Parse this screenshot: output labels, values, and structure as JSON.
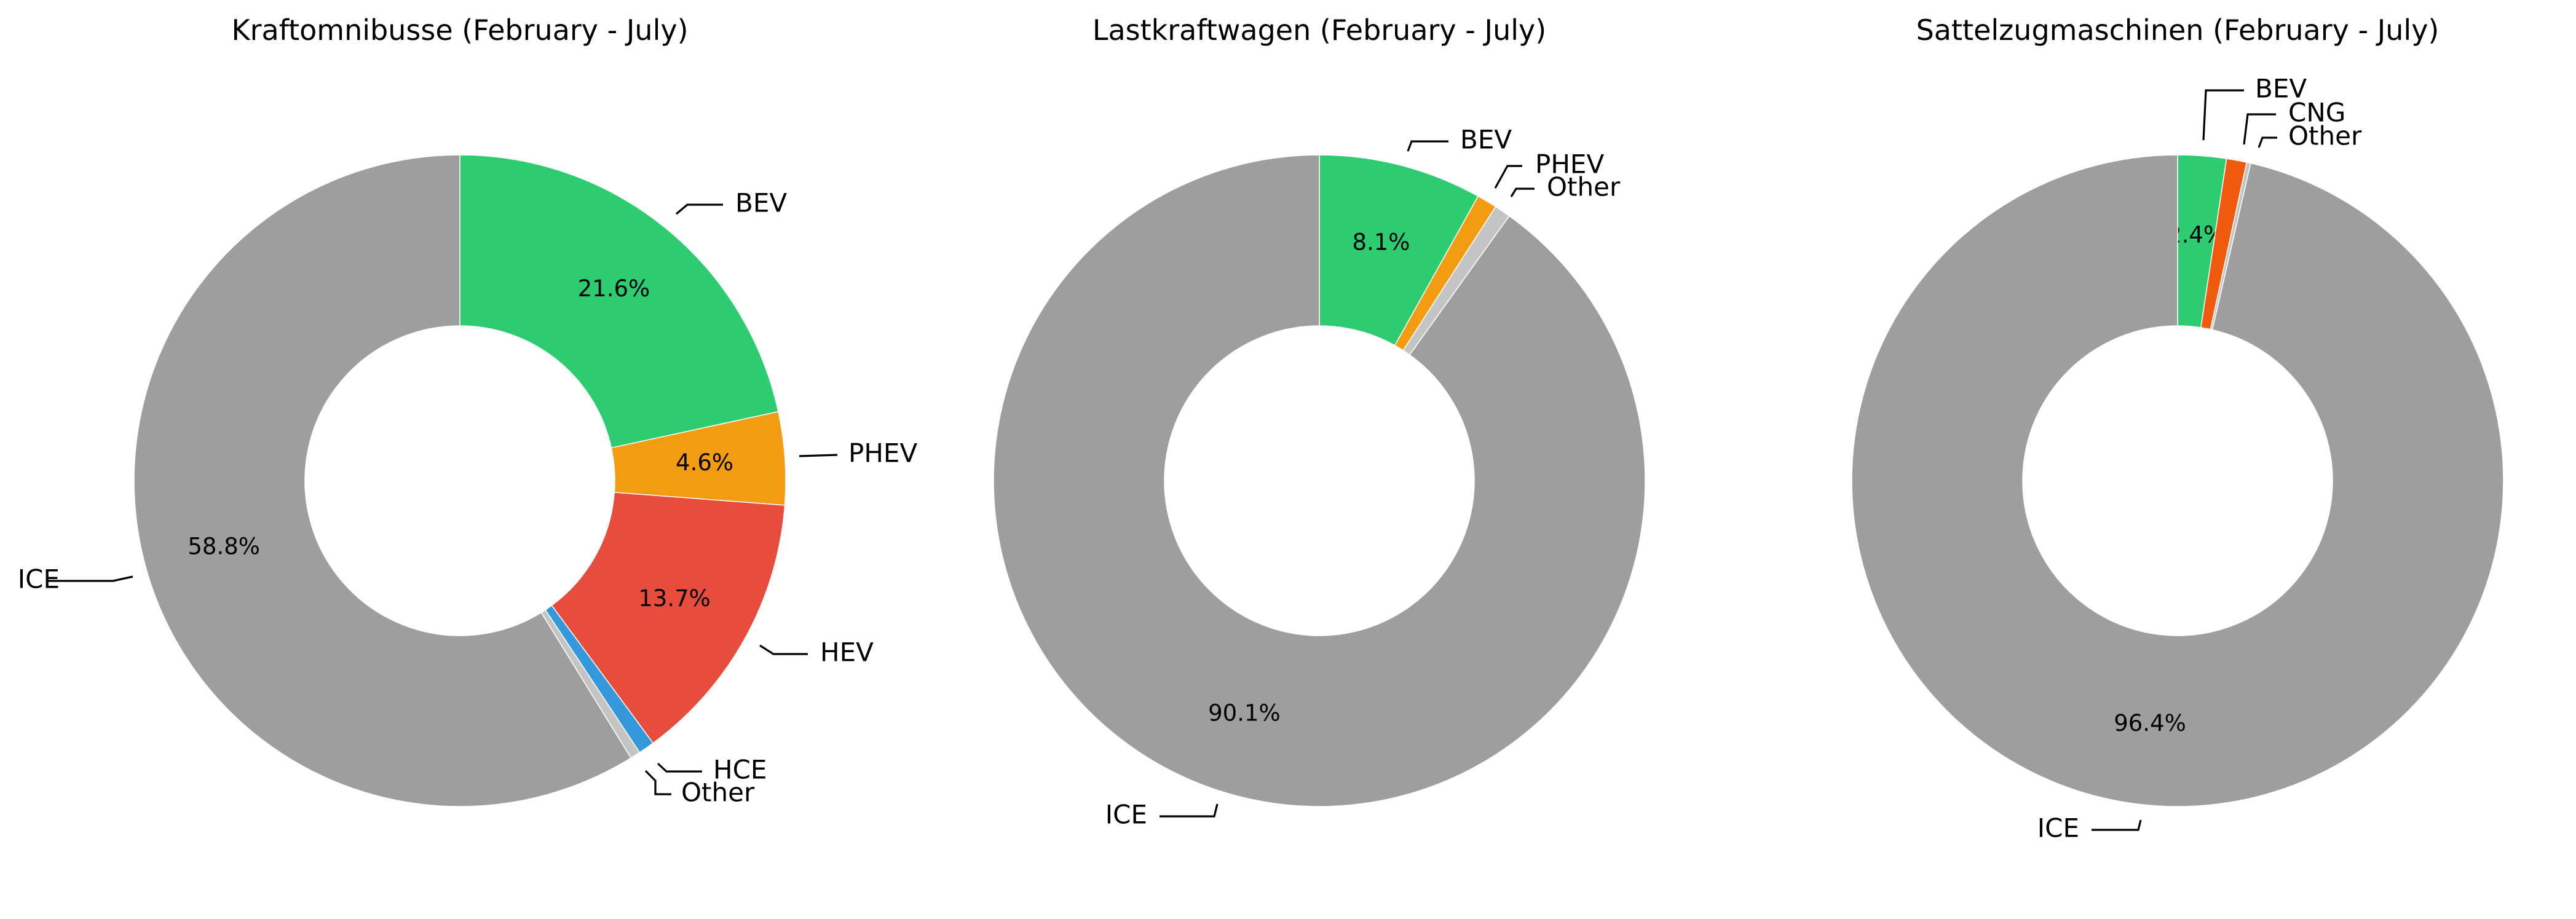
{
  "colors": {
    "BEV": "#2ecc71",
    "PHEV": "#f39c12",
    "HEV": "#e74c3c",
    "HCE": "#3498db",
    "CNG": "#f05a0f",
    "Other": "#c4c4c4",
    "ICE": "#9e9e9e"
  },
  "chart_data": [
    {
      "type": "pie",
      "donut": true,
      "title": "Kraftomnibusse (February - July)",
      "slices": [
        {
          "label": "BEV",
          "value": 21.6,
          "value_label": "21.6%"
        },
        {
          "label": "PHEV",
          "value": 4.6,
          "value_label": "4.6%"
        },
        {
          "label": "HEV",
          "value": 13.7,
          "value_label": "13.7%"
        },
        {
          "label": "HCE",
          "value": 0.8,
          "value_label": ""
        },
        {
          "label": "Other",
          "value": 0.5,
          "value_label": ""
        },
        {
          "label": "ICE",
          "value": 58.8,
          "value_label": "58.8%"
        }
      ]
    },
    {
      "type": "pie",
      "donut": true,
      "title": "Lastkraftwagen (February - July)",
      "slices": [
        {
          "label": "BEV",
          "value": 8.1,
          "value_label": "8.1%"
        },
        {
          "label": "PHEV",
          "value": 1.0,
          "value_label": ""
        },
        {
          "label": "Other",
          "value": 0.8,
          "value_label": ""
        },
        {
          "label": "ICE",
          "value": 90.1,
          "value_label": "90.1%"
        }
      ]
    },
    {
      "type": "pie",
      "donut": true,
      "title": "Sattelzugmaschinen (February - July)",
      "slices": [
        {
          "label": "BEV",
          "value": 2.4,
          "value_label": "2.4%"
        },
        {
          "label": "CNG",
          "value": 1.0,
          "value_label": ""
        },
        {
          "label": "Other",
          "value": 0.2,
          "value_label": ""
        },
        {
          "label": "ICE",
          "value": 96.4,
          "value_label": "96.4%"
        }
      ]
    }
  ]
}
